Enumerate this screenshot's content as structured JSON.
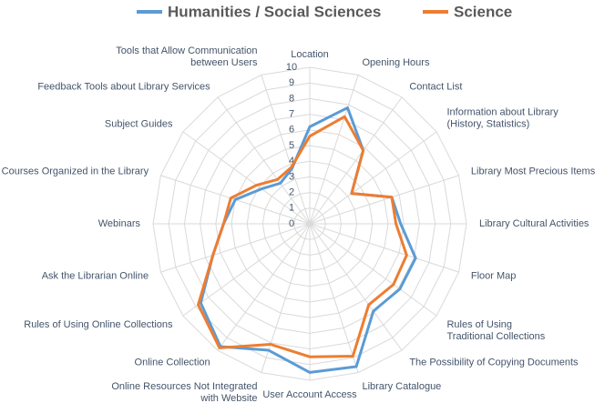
{
  "chart_data": {
    "type": "radar",
    "categories": [
      [
        "Location"
      ],
      [
        "Opening Hours"
      ],
      [
        "Contact List"
      ],
      [
        "Information about Library",
        "(History, Statistics)"
      ],
      [
        "Library Most Precious Items"
      ],
      [
        "Library Cultural Activities"
      ],
      [
        "Floor Map"
      ],
      [
        "Rules of Using",
        "Traditional Collections"
      ],
      [
        "The Possibility of Copying Documents"
      ],
      [
        "Library Catalogue"
      ],
      [
        "User Account Access"
      ],
      [
        "Online Resources Not Integrated",
        "with Website"
      ],
      [
        "Online Collection"
      ],
      [
        "Rules of Using Online Collections"
      ],
      [
        "Ask the Librarian  Online"
      ],
      [
        "Webinars"
      ],
      [
        "Courses Organized in the Library"
      ],
      [
        "Subject Guides"
      ],
      [
        "Feedback Tools about Library Services"
      ],
      [
        "Tools that Allow Communication",
        "between Users"
      ]
    ],
    "series": [
      {
        "name": "Humanities / Social Sciences",
        "color": "#5b9bd5",
        "values": [
          6.2,
          7.8,
          5.8,
          3.3,
          5.5,
          5.8,
          7.1,
          7.1,
          6.9,
          9.6,
          9.5,
          8.5,
          9.7,
          8.6,
          6.5,
          5.5,
          5.0,
          3.8,
          3.2,
          3.7
        ]
      },
      {
        "name": "Science",
        "color": "#ed7d31",
        "values": [
          5.6,
          7.2,
          5.8,
          3.3,
          5.5,
          5.5,
          6.5,
          6.6,
          6.4,
          8.9,
          8.5,
          8.1,
          9.8,
          8.8,
          6.5,
          5.5,
          5.3,
          4.2,
          3.5,
          3.8
        ]
      }
    ],
    "rlim": [
      0,
      10
    ],
    "rticks": [
      0,
      1,
      2,
      3,
      4,
      5,
      6,
      7,
      8,
      9,
      10
    ],
    "grid": true,
    "legend": "top"
  }
}
